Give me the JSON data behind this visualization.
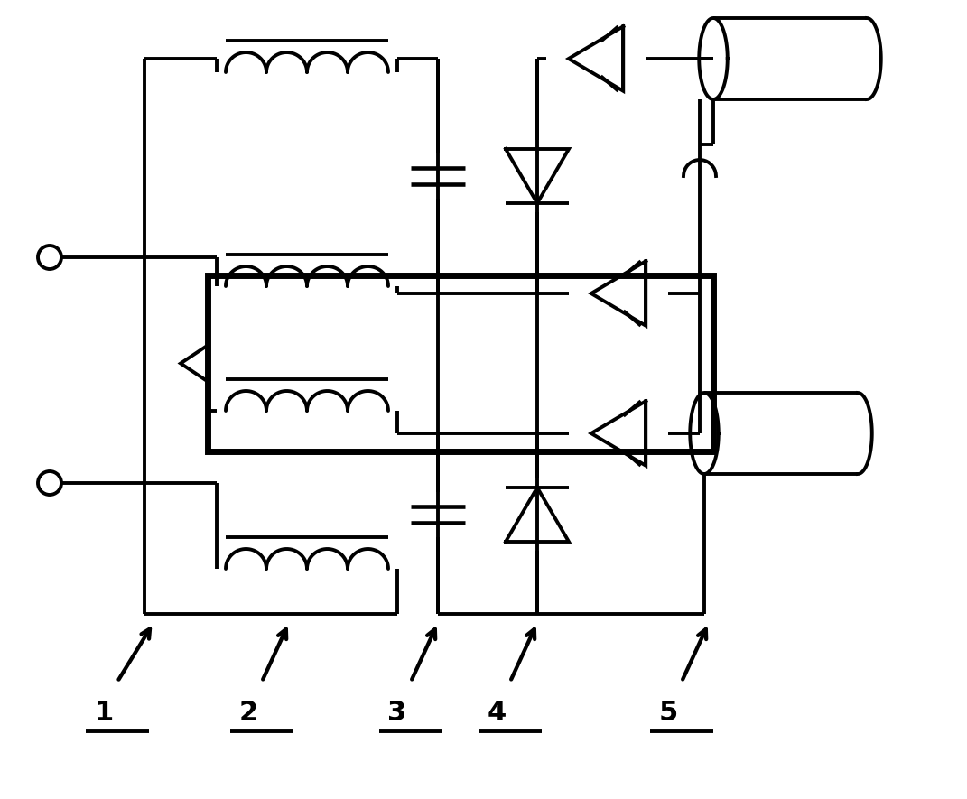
{
  "bg": "#ffffff",
  "lc": "#000000",
  "lw": 2.8,
  "lw_thick": 5.0,
  "fw": 10.71,
  "fh": 8.85,
  "dpi": 100,
  "xmax": 107.1,
  "ymax": 88.5,
  "labels": [
    "1",
    "2",
    "3",
    "4",
    "5"
  ]
}
